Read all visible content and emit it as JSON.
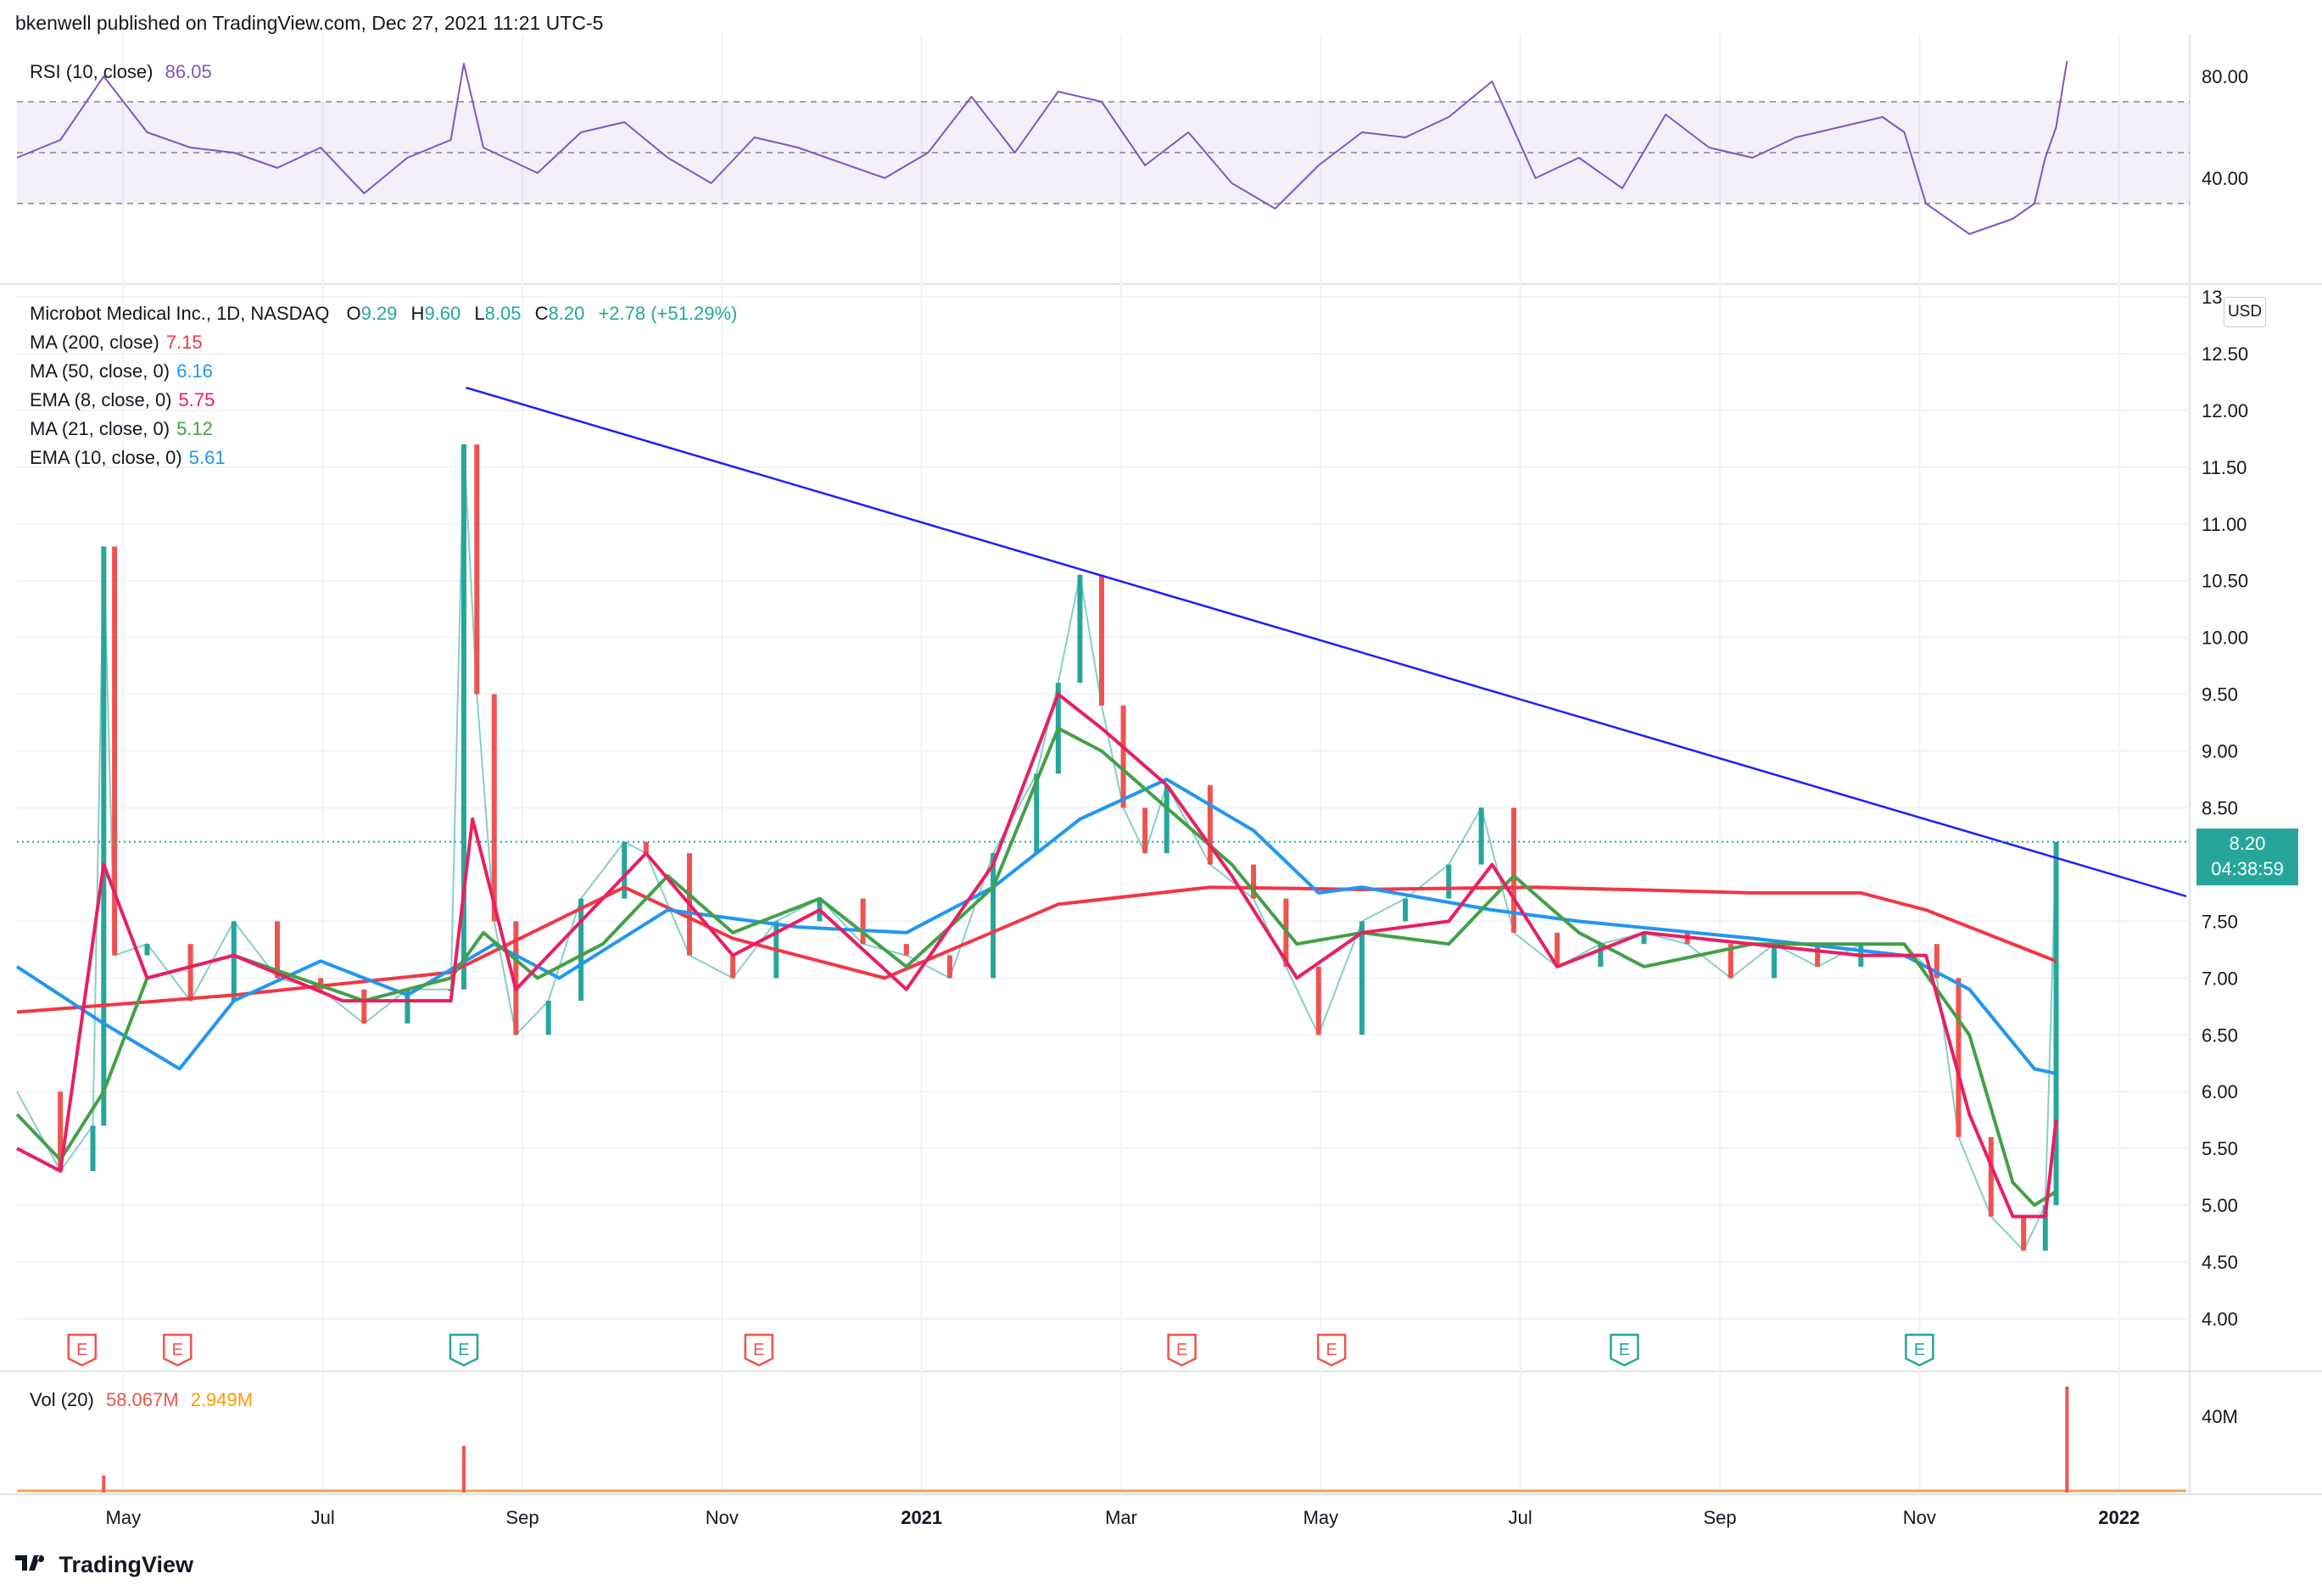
{
  "header": {
    "text": "bkenwell published on TradingView.com, Dec 27, 2021 11:21 UTC-5"
  },
  "brand": {
    "name": "TradingView"
  },
  "currency": "USD",
  "price_tag": {
    "price": "8.20",
    "countdown": "04:38:59"
  },
  "rsi_legend": {
    "label": "RSI (10, close)",
    "value": "86.05"
  },
  "main_legend": {
    "symbol": "Microbot Medical Inc., 1D, NASDAQ",
    "open_label": "O",
    "open": "9.29",
    "high_label": "H",
    "high": "9.60",
    "low_label": "L",
    "low": "8.05",
    "close_label": "C",
    "close": "8.20",
    "change": "+2.78 (+51.29%)",
    "indicators": [
      {
        "label": "MA (200, close)",
        "value": "7.15",
        "color": "#f23645"
      },
      {
        "label": "MA (50, close, 0)",
        "value": "6.16",
        "color": "#2196f3"
      },
      {
        "label": "EMA (8, close, 0)",
        "value": "5.75",
        "color": "#e91e63"
      },
      {
        "label": "MA (21, close, 0)",
        "value": "5.12",
        "color": "#43a047"
      },
      {
        "label": "EMA (10, close, 0)",
        "value": "5.61",
        "color": "#2196f3"
      }
    ]
  },
  "vol_legend": {
    "label": "Vol (20)",
    "value1": "58.067M",
    "value2": "2.949M"
  },
  "colors": {
    "up": "#26a69a",
    "down": "#ef5350",
    "trendline": "#1e1eff",
    "rsi": "#7e57c2",
    "ma200": "#f23645",
    "ma50": "#2196f3",
    "ma21": "#43a047",
    "ema8": "#e91e63"
  },
  "chart_data": {
    "type": "line",
    "title": "Microbot Medical Inc., 1D, NASDAQ",
    "x_ticks": [
      "May",
      "Jul",
      "Sep",
      "Nov",
      "2021",
      "Mar",
      "May",
      "Jul",
      "Sep",
      "Nov",
      "2022"
    ],
    "price_ticks": [
      "13",
      "12.50",
      "12.00",
      "11.50",
      "11.00",
      "10.50",
      "10.00",
      "9.50",
      "9.00",
      "8.50",
      "7.50",
      "7.00",
      "6.50",
      "6.00",
      "5.50",
      "5.00",
      "4.50",
      "4.00"
    ],
    "price_ylim": [
      4.0,
      13.0
    ],
    "rsi_ticks": [
      "80.00",
      "40.00"
    ],
    "rsi_ylim": [
      10,
      90
    ],
    "rsi_band": [
      30,
      70
    ],
    "vol_ticks": [
      "40M"
    ],
    "earnings_markers": [
      {
        "label": "E",
        "kind": "down",
        "x": 0.03
      },
      {
        "label": "E",
        "kind": "down",
        "x": 0.074
      },
      {
        "label": "E",
        "kind": "up",
        "x": 0.206
      },
      {
        "label": "E",
        "kind": "down",
        "x": 0.342
      },
      {
        "label": "E",
        "kind": "down",
        "x": 0.537
      },
      {
        "label": "E",
        "kind": "down",
        "x": 0.606
      },
      {
        "label": "E",
        "kind": "up",
        "x": 0.741
      },
      {
        "label": "E",
        "kind": "up",
        "x": 0.877
      }
    ],
    "trendline": {
      "from": [
        0.207,
        12.2
      ],
      "to": [
        1.0,
        7.72
      ]
    },
    "series": [
      {
        "name": "Price",
        "points": [
          [
            0.0,
            6.0
          ],
          [
            0.02,
            5.3
          ],
          [
            0.035,
            5.7
          ],
          [
            0.04,
            10.8
          ],
          [
            0.045,
            7.2
          ],
          [
            0.06,
            7.3
          ],
          [
            0.08,
            6.8
          ],
          [
            0.1,
            7.5
          ],
          [
            0.12,
            7.0
          ],
          [
            0.14,
            6.9
          ],
          [
            0.16,
            6.6
          ],
          [
            0.18,
            6.9
          ],
          [
            0.2,
            6.9
          ],
          [
            0.206,
            11.7
          ],
          [
            0.212,
            9.5
          ],
          [
            0.22,
            7.5
          ],
          [
            0.23,
            6.5
          ],
          [
            0.245,
            6.8
          ],
          [
            0.26,
            7.7
          ],
          [
            0.28,
            8.2
          ],
          [
            0.29,
            8.1
          ],
          [
            0.31,
            7.2
          ],
          [
            0.33,
            7.0
          ],
          [
            0.35,
            7.5
          ],
          [
            0.37,
            7.7
          ],
          [
            0.39,
            7.3
          ],
          [
            0.41,
            7.2
          ],
          [
            0.43,
            7.0
          ],
          [
            0.45,
            8.1
          ],
          [
            0.47,
            8.8
          ],
          [
            0.48,
            9.6
          ],
          [
            0.49,
            10.55
          ],
          [
            0.5,
            9.4
          ],
          [
            0.51,
            8.5
          ],
          [
            0.52,
            8.1
          ],
          [
            0.53,
            8.7
          ],
          [
            0.55,
            8.0
          ],
          [
            0.57,
            7.7
          ],
          [
            0.585,
            7.1
          ],
          [
            0.6,
            6.5
          ],
          [
            0.62,
            7.5
          ],
          [
            0.64,
            7.7
          ],
          [
            0.66,
            8.0
          ],
          [
            0.675,
            8.5
          ],
          [
            0.69,
            7.4
          ],
          [
            0.71,
            7.1
          ],
          [
            0.73,
            7.3
          ],
          [
            0.75,
            7.4
          ],
          [
            0.77,
            7.3
          ],
          [
            0.79,
            7.0
          ],
          [
            0.81,
            7.3
          ],
          [
            0.83,
            7.1
          ],
          [
            0.85,
            7.3
          ],
          [
            0.87,
            7.3
          ],
          [
            0.885,
            7.0
          ],
          [
            0.895,
            5.6
          ],
          [
            0.91,
            4.9
          ],
          [
            0.925,
            4.6
          ],
          [
            0.935,
            5.0
          ],
          [
            0.94,
            8.2
          ]
        ]
      },
      {
        "name": "MA (200, close)",
        "points": [
          [
            0.0,
            6.7
          ],
          [
            0.1,
            6.85
          ],
          [
            0.2,
            7.05
          ],
          [
            0.28,
            7.8
          ],
          [
            0.33,
            7.35
          ],
          [
            0.4,
            7.0
          ],
          [
            0.48,
            7.65
          ],
          [
            0.55,
            7.8
          ],
          [
            0.62,
            7.78
          ],
          [
            0.7,
            7.8
          ],
          [
            0.8,
            7.75
          ],
          [
            0.85,
            7.75
          ],
          [
            0.88,
            7.6
          ],
          [
            0.94,
            7.15
          ]
        ]
      },
      {
        "name": "MA (50, close, 0)",
        "points": [
          [
            0.0,
            7.1
          ],
          [
            0.04,
            6.6
          ],
          [
            0.075,
            6.2
          ],
          [
            0.1,
            6.8
          ],
          [
            0.14,
            7.15
          ],
          [
            0.18,
            6.85
          ],
          [
            0.22,
            7.3
          ],
          [
            0.25,
            7.0
          ],
          [
            0.3,
            7.6
          ],
          [
            0.36,
            7.45
          ],
          [
            0.41,
            7.4
          ],
          [
            0.45,
            7.8
          ],
          [
            0.49,
            8.4
          ],
          [
            0.53,
            8.75
          ],
          [
            0.57,
            8.3
          ],
          [
            0.6,
            7.75
          ],
          [
            0.62,
            7.8
          ],
          [
            0.68,
            7.6
          ],
          [
            0.72,
            7.5
          ],
          [
            0.8,
            7.35
          ],
          [
            0.87,
            7.2
          ],
          [
            0.9,
            6.9
          ],
          [
            0.93,
            6.2
          ],
          [
            0.94,
            6.16
          ]
        ]
      },
      {
        "name": "MA (21, close, 0)",
        "points": [
          [
            0.0,
            5.8
          ],
          [
            0.02,
            5.4
          ],
          [
            0.04,
            6.0
          ],
          [
            0.06,
            7.0
          ],
          [
            0.1,
            7.2
          ],
          [
            0.13,
            7.0
          ],
          [
            0.16,
            6.8
          ],
          [
            0.2,
            7.0
          ],
          [
            0.215,
            7.4
          ],
          [
            0.24,
            7.0
          ],
          [
            0.27,
            7.3
          ],
          [
            0.3,
            7.9
          ],
          [
            0.33,
            7.4
          ],
          [
            0.37,
            7.7
          ],
          [
            0.41,
            7.1
          ],
          [
            0.45,
            7.8
          ],
          [
            0.48,
            9.2
          ],
          [
            0.5,
            9.0
          ],
          [
            0.53,
            8.5
          ],
          [
            0.56,
            8.0
          ],
          [
            0.59,
            7.3
          ],
          [
            0.62,
            7.4
          ],
          [
            0.66,
            7.3
          ],
          [
            0.69,
            7.9
          ],
          [
            0.72,
            7.4
          ],
          [
            0.75,
            7.1
          ],
          [
            0.8,
            7.3
          ],
          [
            0.85,
            7.3
          ],
          [
            0.87,
            7.3
          ],
          [
            0.9,
            6.5
          ],
          [
            0.92,
            5.2
          ],
          [
            0.93,
            5.0
          ],
          [
            0.94,
            5.12
          ]
        ]
      },
      {
        "name": "EMA (8, close, 0)",
        "points": [
          [
            0.0,
            5.5
          ],
          [
            0.02,
            5.3
          ],
          [
            0.04,
            8.0
          ],
          [
            0.06,
            7.0
          ],
          [
            0.1,
            7.2
          ],
          [
            0.15,
            6.8
          ],
          [
            0.2,
            6.8
          ],
          [
            0.21,
            8.4
          ],
          [
            0.23,
            6.9
          ],
          [
            0.27,
            7.7
          ],
          [
            0.29,
            8.1
          ],
          [
            0.33,
            7.2
          ],
          [
            0.37,
            7.6
          ],
          [
            0.41,
            6.9
          ],
          [
            0.45,
            8.0
          ],
          [
            0.48,
            9.5
          ],
          [
            0.5,
            9.2
          ],
          [
            0.53,
            8.7
          ],
          [
            0.56,
            7.9
          ],
          [
            0.59,
            7.0
          ],
          [
            0.62,
            7.4
          ],
          [
            0.66,
            7.5
          ],
          [
            0.68,
            8.0
          ],
          [
            0.71,
            7.1
          ],
          [
            0.75,
            7.4
          ],
          [
            0.8,
            7.3
          ],
          [
            0.85,
            7.2
          ],
          [
            0.88,
            7.2
          ],
          [
            0.9,
            5.8
          ],
          [
            0.92,
            4.9
          ],
          [
            0.935,
            4.9
          ],
          [
            0.94,
            5.75
          ]
        ]
      },
      {
        "name": "RSI (10, close)",
        "points": [
          [
            0.0,
            48
          ],
          [
            0.02,
            55
          ],
          [
            0.04,
            80
          ],
          [
            0.06,
            58
          ],
          [
            0.08,
            52
          ],
          [
            0.1,
            50
          ],
          [
            0.12,
            44
          ],
          [
            0.14,
            52
          ],
          [
            0.16,
            34
          ],
          [
            0.18,
            48
          ],
          [
            0.2,
            55
          ],
          [
            0.206,
            85
          ],
          [
            0.215,
            52
          ],
          [
            0.24,
            42
          ],
          [
            0.26,
            58
          ],
          [
            0.28,
            62
          ],
          [
            0.3,
            48
          ],
          [
            0.32,
            38
          ],
          [
            0.34,
            56
          ],
          [
            0.36,
            52
          ],
          [
            0.38,
            46
          ],
          [
            0.4,
            40
          ],
          [
            0.42,
            50
          ],
          [
            0.44,
            72
          ],
          [
            0.46,
            50
          ],
          [
            0.48,
            74
          ],
          [
            0.5,
            70
          ],
          [
            0.52,
            45
          ],
          [
            0.54,
            58
          ],
          [
            0.56,
            38
          ],
          [
            0.58,
            28
          ],
          [
            0.6,
            45
          ],
          [
            0.62,
            58
          ],
          [
            0.64,
            56
          ],
          [
            0.66,
            64
          ],
          [
            0.68,
            78
          ],
          [
            0.7,
            40
          ],
          [
            0.72,
            48
          ],
          [
            0.74,
            36
          ],
          [
            0.76,
            65
          ],
          [
            0.78,
            52
          ],
          [
            0.8,
            48
          ],
          [
            0.82,
            56
          ],
          [
            0.84,
            60
          ],
          [
            0.86,
            64
          ],
          [
            0.87,
            58
          ],
          [
            0.88,
            30
          ],
          [
            0.9,
            18
          ],
          [
            0.92,
            24
          ],
          [
            0.93,
            30
          ],
          [
            0.935,
            48
          ],
          [
            0.94,
            60
          ],
          [
            0.945,
            86
          ]
        ]
      }
    ]
  }
}
